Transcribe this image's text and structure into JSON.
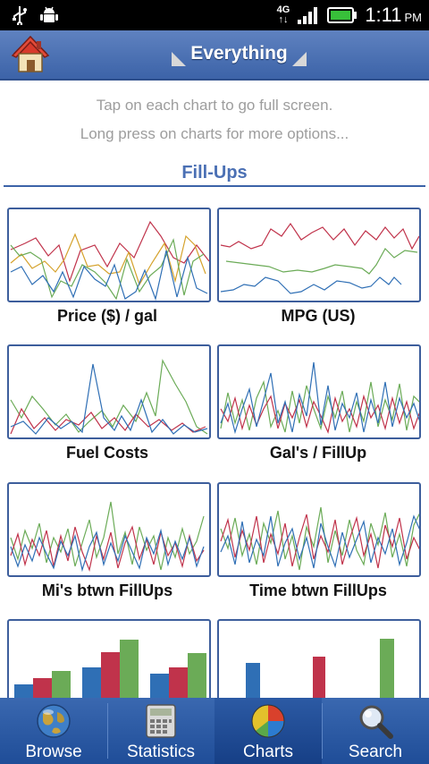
{
  "status_bar": {
    "network": "4G",
    "time": "1:11",
    "ampm": "PM"
  },
  "header": {
    "title": "Everything"
  },
  "hints": {
    "line1": "Tap on each chart to go full screen.",
    "line2": "Long press on charts for more options..."
  },
  "section": {
    "title": "Fill-Ups"
  },
  "charts": [
    {
      "label": "Price ($) / gal"
    },
    {
      "label": "MPG (US)"
    },
    {
      "label": "Fuel Costs"
    },
    {
      "label": "Gal's / FillUp"
    },
    {
      "label": "Mi's btwn FillUps"
    },
    {
      "label": "Time btwn FillUps"
    }
  ],
  "bar_chart": {
    "groups": [
      {
        "blue": 19,
        "red": 26,
        "green": 34
      },
      {
        "blue": 38,
        "red": 55,
        "green": 69
      },
      {
        "blue": 31,
        "red": 38,
        "green": 54
      }
    ]
  },
  "bar_chart_2": {
    "blue": 43,
    "red": 50,
    "green": 70
  },
  "colors": {
    "blue": "#2f6fb5",
    "red": "#c0334b",
    "green": "#6bab57",
    "orange": "#d5a22c"
  },
  "tabs": [
    {
      "label": "Browse",
      "icon": "globe-icon"
    },
    {
      "label": "Statistics",
      "icon": "calculator-icon"
    },
    {
      "label": "Charts",
      "icon": "pie-chart-icon"
    },
    {
      "label": "Search",
      "icon": "magnifier-icon"
    }
  ]
}
